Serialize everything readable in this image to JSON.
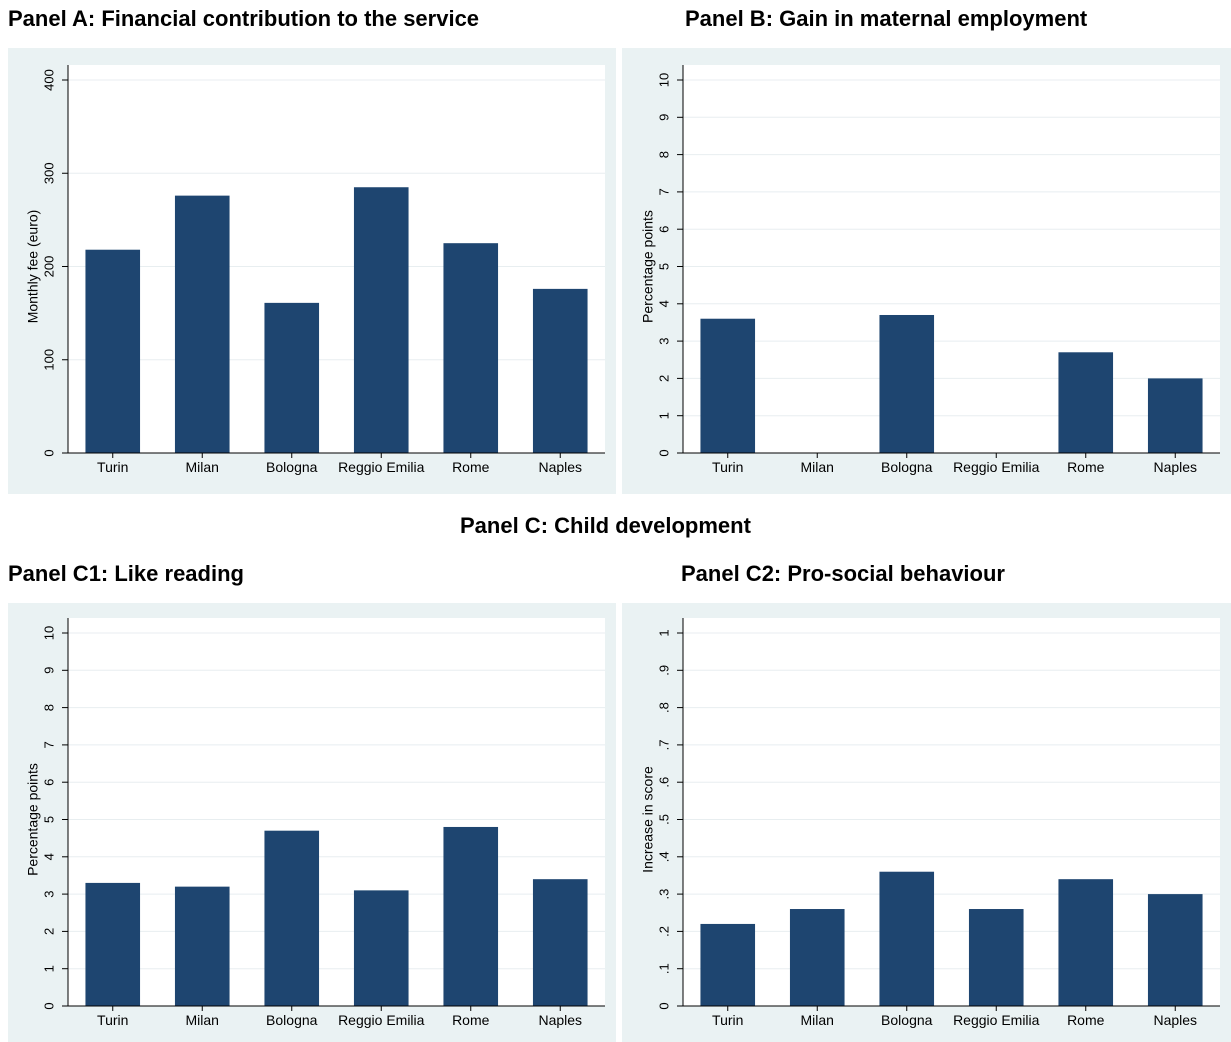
{
  "headings": {
    "panel_a": "Panel A: Financial contribution to the service",
    "panel_b": "Panel B: Gain in maternal employment",
    "panel_c": "Panel C: Child development",
    "panel_c1": "Panel C1: Like reading",
    "panel_c2": "Panel C2: Pro-social behaviour"
  },
  "colors": {
    "bar": "#1e4570",
    "panel_background": "#eaf2f3",
    "plot_background": "#ffffff",
    "grid": "#e8eef0"
  },
  "chart_data": [
    {
      "id": "panel_a",
      "type": "bar",
      "title": "Panel A: Financial contribution to the service",
      "categories": [
        "Turin",
        "Milan",
        "Bologna",
        "Reggio Emilia",
        "Rome",
        "Naples"
      ],
      "values": [
        218,
        276,
        161,
        285,
        225,
        176
      ],
      "ylabel": "Monthly fee (euro)",
      "xlabel": "",
      "ylim": [
        0,
        400
      ],
      "yticks": [
        0,
        100,
        200,
        300,
        400
      ],
      "ytick_labels": [
        "0",
        "100",
        "200",
        "300",
        "400"
      ],
      "grid": true,
      "legend": "none"
    },
    {
      "id": "panel_b",
      "type": "bar",
      "title": "Panel B: Gain in maternal employment",
      "categories": [
        "Turin",
        "Milan",
        "Bologna",
        "Reggio Emilia",
        "Rome",
        "Naples"
      ],
      "values": [
        3.6,
        0,
        3.7,
        0,
        2.7,
        2.0
      ],
      "ylabel": "Percentage points",
      "xlabel": "",
      "ylim": [
        0,
        10
      ],
      "yticks": [
        0,
        1,
        2,
        3,
        4,
        5,
        6,
        7,
        8,
        9,
        10
      ],
      "ytick_labels": [
        "0",
        "1",
        "2",
        "3",
        "4",
        "5",
        "6",
        "7",
        "8",
        "9",
        "10"
      ],
      "grid": true,
      "legend": "none"
    },
    {
      "id": "panel_c1",
      "type": "bar",
      "title": "Panel C1: Like reading",
      "categories": [
        "Turin",
        "Milan",
        "Bologna",
        "Reggio Emilia",
        "Rome",
        "Naples"
      ],
      "values": [
        3.3,
        3.2,
        4.7,
        3.1,
        4.8,
        3.4
      ],
      "ylabel": "Percentage points",
      "xlabel": "",
      "ylim": [
        0,
        10
      ],
      "yticks": [
        0,
        1,
        2,
        3,
        4,
        5,
        6,
        7,
        8,
        9,
        10
      ],
      "ytick_labels": [
        "0",
        "1",
        "2",
        "3",
        "4",
        "5",
        "6",
        "7",
        "8",
        "9",
        "10"
      ],
      "grid": true,
      "legend": "none"
    },
    {
      "id": "panel_c2",
      "type": "bar",
      "title": "Panel C2: Pro-social behaviour",
      "categories": [
        "Turin",
        "Milan",
        "Bologna",
        "Reggio Emilia",
        "Rome",
        "Naples"
      ],
      "values": [
        0.22,
        0.26,
        0.36,
        0.26,
        0.34,
        0.3
      ],
      "ylabel": "Increase in score",
      "xlabel": "",
      "ylim": [
        0,
        1
      ],
      "yticks": [
        0,
        0.1,
        0.2,
        0.3,
        0.4,
        0.5,
        0.6,
        0.7,
        0.8,
        0.9,
        1
      ],
      "ytick_labels": [
        "0",
        ".1",
        ".2",
        ".3",
        ".4",
        ".5",
        ".6",
        ".7",
        ".8",
        ".9",
        "1"
      ],
      "grid": true,
      "legend": "none"
    }
  ]
}
